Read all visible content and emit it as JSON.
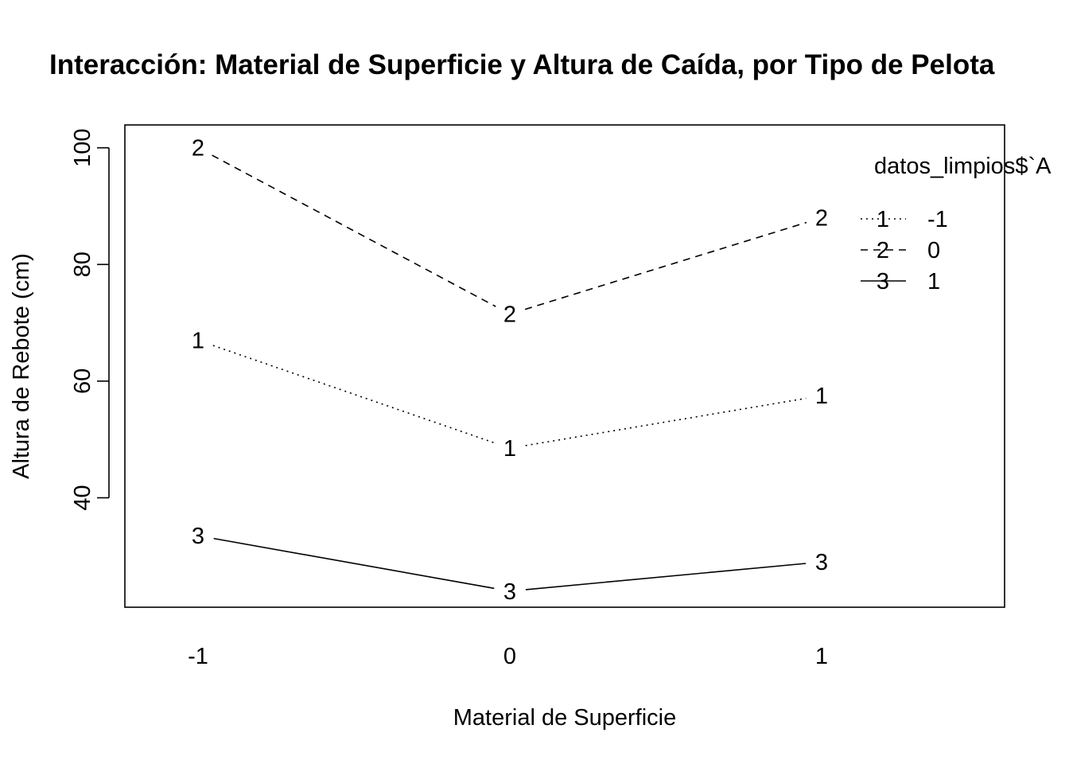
{
  "chart_data": {
    "type": "line",
    "title": "Interacción: Material de Superficie y Altura de Caída, por Tipo de Pelota",
    "xlabel": "Material de Superficie",
    "ylabel": "Altura de Rebote (cm)",
    "categories": [
      "-1",
      "0",
      "1"
    ],
    "x_tick_labels": [
      "-1",
      "0",
      "1"
    ],
    "y_ticks": [
      40,
      60,
      80,
      100
    ],
    "ylim": [
      22,
      104
    ],
    "grid": false,
    "legend": {
      "title": "datos_limpios$`A",
      "position": "top-right",
      "entries": [
        {
          "symbol": "1",
          "label": "-1",
          "linestyle": "dotted"
        },
        {
          "symbol": "2",
          "label": "0",
          "linestyle": "dashed"
        },
        {
          "symbol": "3",
          "label": "1",
          "linestyle": "solid"
        }
      ]
    },
    "series": [
      {
        "name": "-1",
        "symbol": "1",
        "linestyle": "dotted",
        "values": [
          67,
          48.5,
          57.5
        ]
      },
      {
        "name": "0",
        "symbol": "2",
        "linestyle": "dashed",
        "values": [
          100,
          71.5,
          88
        ]
      },
      {
        "name": "1",
        "symbol": "3",
        "linestyle": "solid",
        "values": [
          33.5,
          24,
          29
        ]
      }
    ]
  }
}
